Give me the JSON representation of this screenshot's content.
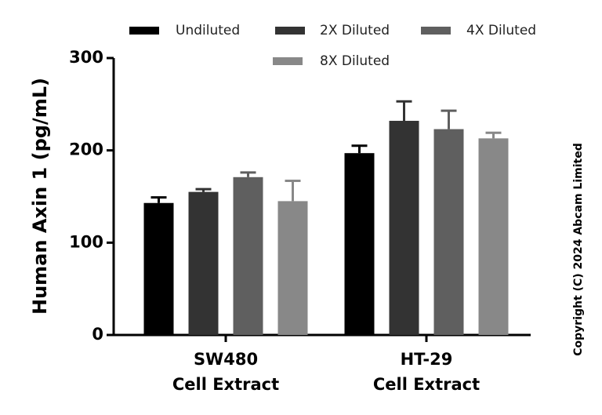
{
  "chart_data": {
    "type": "bar",
    "ylabel": "Human Axin 1 (pg/mL)",
    "ylim": [
      0,
      300
    ],
    "yticks": [
      0,
      100,
      200,
      300
    ],
    "categories": [
      {
        "line1": "SW480",
        "line2": "Cell Extract"
      },
      {
        "line1": "HT-29",
        "line2": "Cell Extract"
      }
    ],
    "series": [
      {
        "name": "Undiluted",
        "color": "#000000",
        "values": [
          143,
          197
        ],
        "errors": [
          6,
          8
        ]
      },
      {
        "name": "2X Diluted",
        "color": "#333333",
        "values": [
          155,
          232
        ],
        "errors": [
          3,
          21
        ]
      },
      {
        "name": "4X Diluted",
        "color": "#5f5f5f",
        "values": [
          171,
          223
        ],
        "errors": [
          5,
          20
        ]
      },
      {
        "name": "8X Diluted",
        "color": "#888888",
        "values": [
          145,
          213
        ],
        "errors": [
          22,
          6
        ]
      }
    ],
    "legend_position": "top",
    "grid": false
  },
  "copyright": "Copyright (C) 2024 Abcam Limited"
}
